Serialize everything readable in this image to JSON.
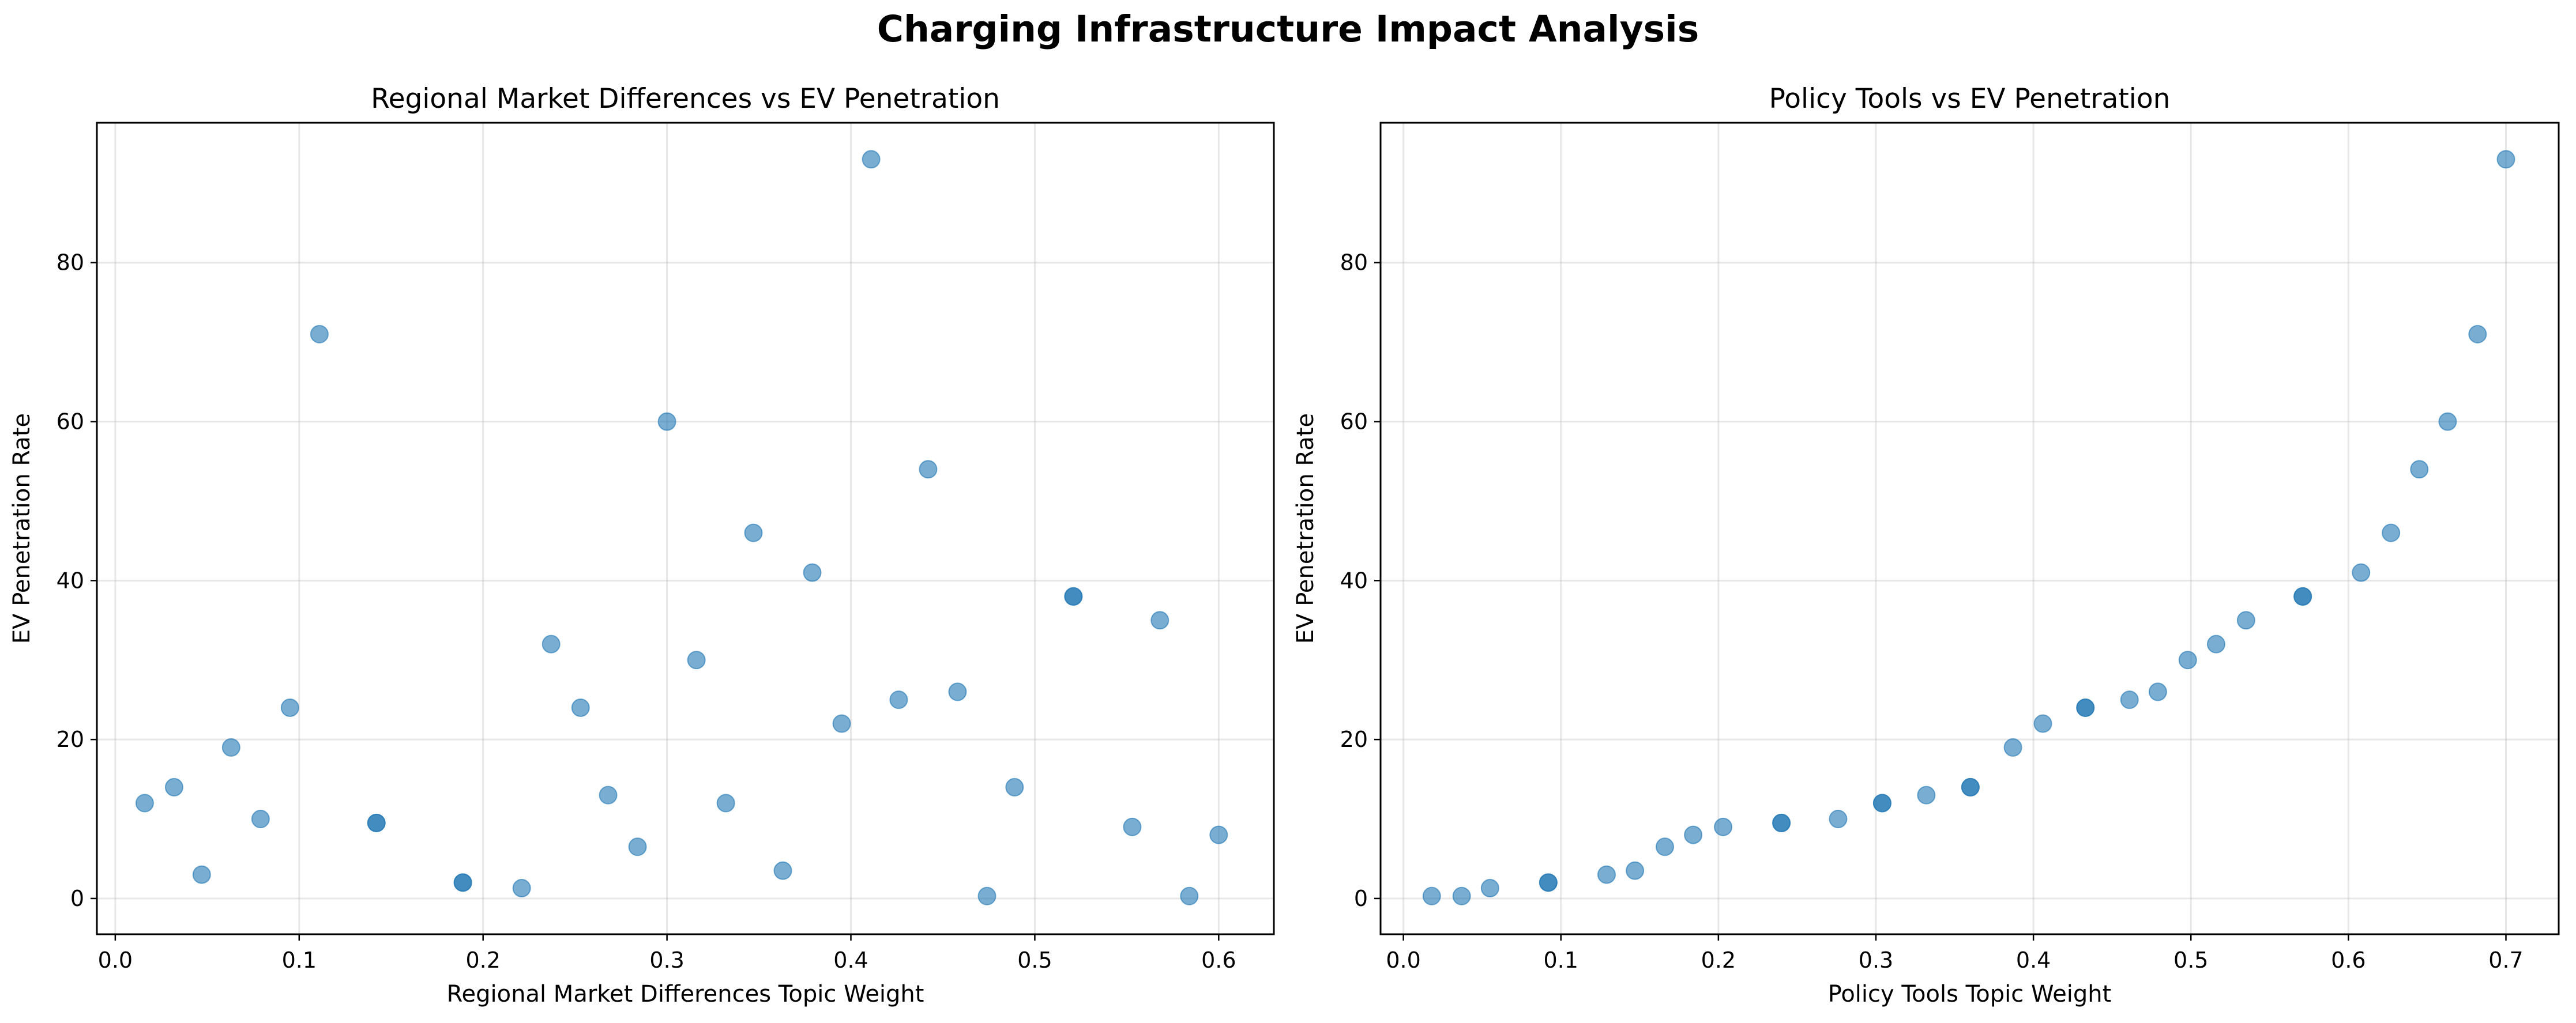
{
  "figure": {
    "title": "Charging Infrastructure Impact Analysis"
  },
  "chart_data": [
    {
      "type": "scatter",
      "title": "Regional Market Differences vs EV Penetration",
      "xlabel": "Regional Market Differences Topic Weight",
      "ylabel": "EV Penetration Rate",
      "xlim": [
        -0.01,
        0.63
      ],
      "ylim": [
        -4.5,
        97.6
      ],
      "xticks": [
        0.0,
        0.1,
        0.2,
        0.3,
        0.4,
        0.5,
        0.6
      ],
      "xtick_labels": [
        "0.0",
        "0.1",
        "0.2",
        "0.3",
        "0.4",
        "0.5",
        "0.6"
      ],
      "yticks": [
        0,
        20,
        40,
        60,
        80
      ],
      "ytick_labels": [
        "0",
        "20",
        "40",
        "60",
        "80"
      ],
      "grid": true,
      "color": "#1f77b4",
      "points": [
        {
          "x": 0.016,
          "y": 12.0
        },
        {
          "x": 0.032,
          "y": 14.0
        },
        {
          "x": 0.047,
          "y": 3.0
        },
        {
          "x": 0.063,
          "y": 19.0
        },
        {
          "x": 0.079,
          "y": 10.0
        },
        {
          "x": 0.095,
          "y": 24.0
        },
        {
          "x": 0.111,
          "y": 71.0
        },
        {
          "x": 0.142,
          "y": 9.5
        },
        {
          "x": 0.142,
          "y": 9.5
        },
        {
          "x": 0.189,
          "y": 2.0
        },
        {
          "x": 0.189,
          "y": 2.0
        },
        {
          "x": 0.221,
          "y": 1.3
        },
        {
          "x": 0.237,
          "y": 32.0
        },
        {
          "x": 0.253,
          "y": 24.0
        },
        {
          "x": 0.268,
          "y": 13.0
        },
        {
          "x": 0.284,
          "y": 6.5
        },
        {
          "x": 0.3,
          "y": 60.0
        },
        {
          "x": 0.316,
          "y": 30.0
        },
        {
          "x": 0.332,
          "y": 12.0
        },
        {
          "x": 0.347,
          "y": 46.0
        },
        {
          "x": 0.363,
          "y": 3.5
        },
        {
          "x": 0.379,
          "y": 41.0
        },
        {
          "x": 0.395,
          "y": 22.0
        },
        {
          "x": 0.411,
          "y": 93.0
        },
        {
          "x": 0.426,
          "y": 25.0
        },
        {
          "x": 0.442,
          "y": 54.0
        },
        {
          "x": 0.458,
          "y": 26.0
        },
        {
          "x": 0.474,
          "y": 0.3
        },
        {
          "x": 0.489,
          "y": 14.0
        },
        {
          "x": 0.521,
          "y": 38.0
        },
        {
          "x": 0.521,
          "y": 38.0
        },
        {
          "x": 0.553,
          "y": 9.0
        },
        {
          "x": 0.568,
          "y": 35.0
        },
        {
          "x": 0.584,
          "y": 0.3
        },
        {
          "x": 0.6,
          "y": 8.0
        }
      ]
    },
    {
      "type": "scatter",
      "title": "Policy Tools vs EV Penetration",
      "xlabel": "Policy Tools Topic Weight",
      "ylabel": "EV Penetration Rate",
      "xlim": [
        -0.0145,
        0.7335
      ],
      "ylim": [
        -4.5,
        97.6
      ],
      "xticks": [
        0.0,
        0.1,
        0.2,
        0.3,
        0.4,
        0.5,
        0.6,
        0.7
      ],
      "xtick_labels": [
        "0.0",
        "0.1",
        "0.2",
        "0.3",
        "0.4",
        "0.5",
        "0.6",
        "0.7"
      ],
      "yticks": [
        0,
        20,
        40,
        60,
        80
      ],
      "ytick_labels": [
        "0",
        "20",
        "40",
        "60",
        "80"
      ],
      "grid": true,
      "color": "#1f77b4",
      "points": [
        {
          "x": 0.018,
          "y": 0.3
        },
        {
          "x": 0.037,
          "y": 0.3
        },
        {
          "x": 0.055,
          "y": 1.3
        },
        {
          "x": 0.092,
          "y": 2.0
        },
        {
          "x": 0.092,
          "y": 2.0
        },
        {
          "x": 0.129,
          "y": 3.0
        },
        {
          "x": 0.147,
          "y": 3.5
        },
        {
          "x": 0.166,
          "y": 6.5
        },
        {
          "x": 0.184,
          "y": 8.0
        },
        {
          "x": 0.203,
          "y": 9.0
        },
        {
          "x": 0.24,
          "y": 9.5
        },
        {
          "x": 0.24,
          "y": 9.5
        },
        {
          "x": 0.276,
          "y": 10.0
        },
        {
          "x": 0.304,
          "y": 12.0
        },
        {
          "x": 0.304,
          "y": 12.0
        },
        {
          "x": 0.332,
          "y": 13.0
        },
        {
          "x": 0.36,
          "y": 14.0
        },
        {
          "x": 0.36,
          "y": 14.0
        },
        {
          "x": 0.387,
          "y": 19.0
        },
        {
          "x": 0.406,
          "y": 22.0
        },
        {
          "x": 0.433,
          "y": 24.0
        },
        {
          "x": 0.433,
          "y": 24.0
        },
        {
          "x": 0.461,
          "y": 25.0
        },
        {
          "x": 0.479,
          "y": 26.0
        },
        {
          "x": 0.498,
          "y": 30.0
        },
        {
          "x": 0.516,
          "y": 32.0
        },
        {
          "x": 0.535,
          "y": 35.0
        },
        {
          "x": 0.571,
          "y": 38.0
        },
        {
          "x": 0.571,
          "y": 38.0
        },
        {
          "x": 0.608,
          "y": 41.0
        },
        {
          "x": 0.627,
          "y": 46.0
        },
        {
          "x": 0.645,
          "y": 54.0
        },
        {
          "x": 0.663,
          "y": 60.0
        },
        {
          "x": 0.682,
          "y": 71.0
        },
        {
          "x": 0.7,
          "y": 93.0
        }
      ]
    }
  ]
}
